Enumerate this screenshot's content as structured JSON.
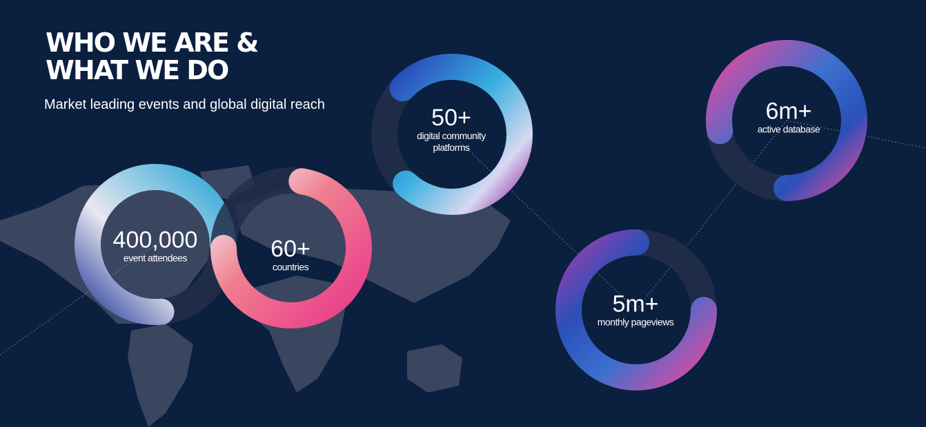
{
  "header": {
    "title_line1": "WHO WE ARE &",
    "title_line2": "WHAT WE DO",
    "subtitle": "Market leading events and global digital reach"
  },
  "stats": [
    {
      "value": "400,000",
      "label": "event attendees"
    },
    {
      "value": "60+",
      "label": "countries"
    },
    {
      "value": "50+",
      "label": "digital community platforms"
    },
    {
      "value": "6m+",
      "label": "active database"
    },
    {
      "value": "5m+",
      "label": "monthly pageviews"
    }
  ],
  "colors": {
    "background": "#0b1f3f",
    "ring_track": "#232f4a",
    "map": "#3a4560",
    "accent_blue": "#2a5cc0",
    "accent_cyan": "#3ab0e0",
    "accent_pink": "#e0449a",
    "accent_purple": "#7a4ab0"
  }
}
